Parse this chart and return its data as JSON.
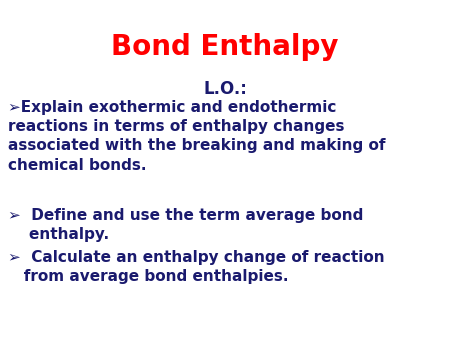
{
  "title": "Bond Enthalpy",
  "title_color": "#FF0000",
  "title_fontsize": 20,
  "lo_label": "L.O.:",
  "lo_color": "#1a1a6e",
  "lo_fontsize": 12,
  "bullet_color": "#1a1a6e",
  "bullet_fontsize": 11,
  "background_color": "#ffffff",
  "fig_width": 4.5,
  "fig_height": 3.38,
  "dpi": 100,
  "bullet1_sym": "➢Explain exothermic and endothermic\nreactions in terms of enthalpy changes\nassociated with the breaking and making of\nchemical bonds.",
  "bullet2_line1": "➢  Define and use the term average bond",
  "bullet2_line2": "    enthalpy.",
  "bullet3_line1": "➢  Calculate an enthalpy change of reaction",
  "bullet3_line2": "   from average bond enthalpies."
}
